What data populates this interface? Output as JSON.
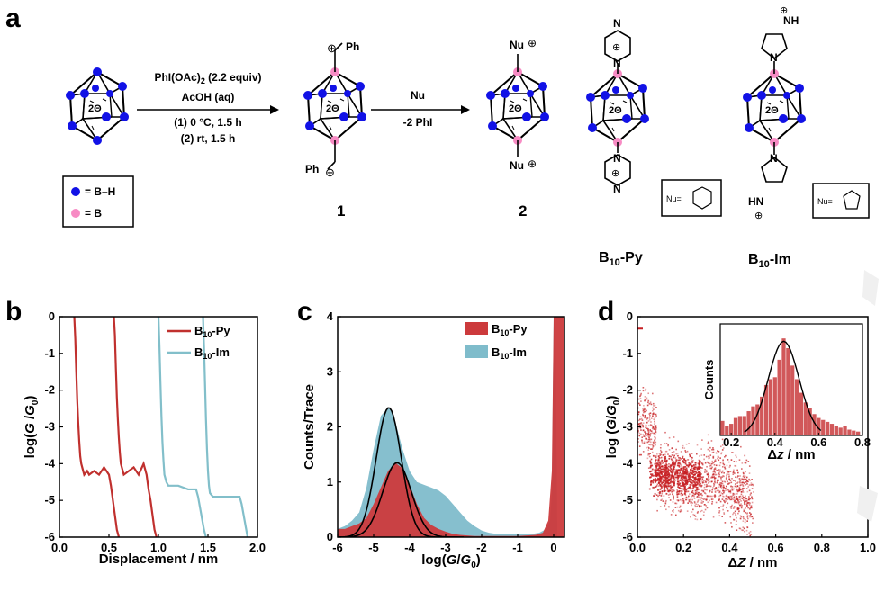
{
  "panel_a": {
    "letter": "a",
    "reagents_line1": "PhI(OAc)",
    "reagents_line1_sub": "2",
    "reagents_line1_tail": " (2.2 equiv)",
    "reagents_line2": "AcOH (aq)",
    "reagents_line3": "(1) 0 °C, 1.5 h",
    "reagents_line4": "(2) rt, 1.5 h",
    "step2_top": "Nu",
    "step2_bottom": "-2 PhI",
    "legend_bh": "= B–H",
    "legend_b": "= B",
    "compound1": "1",
    "compound2": "2",
    "cage_charge": "2Θ",
    "ph_top": "Ph",
    "ph_bottom": "Ph",
    "plus": "⊕",
    "nu_top": "Nu",
    "nu_bottom": "Nu",
    "nu_box_label": "Nu=",
    "nh_label": "NH",
    "hn_label": "HN",
    "n_label": "N",
    "pyrazine_n": "N",
    "b10py_main": "B",
    "b10py_sub": "10",
    "b10py_tail": "-Py",
    "b10im_main": "B",
    "b10im_sub": "10",
    "b10im_tail": "-Im",
    "colors": {
      "bh": "#1212e6",
      "b": "#f78bc4"
    }
  },
  "chart_data": [
    {
      "panel": "b",
      "type": "line",
      "xlabel": "Displacement / nm",
      "ylabel_pre": "log(",
      "ylabel_g": "G",
      "ylabel_mid": " /",
      "ylabel_g0": "G",
      "ylabel_sub": "0",
      "ylabel_post": ")",
      "xlim": [
        0.0,
        2.0
      ],
      "ylim": [
        -6,
        0
      ],
      "xticks": [
        "0.0",
        "0.5",
        "1.0",
        "1.5",
        "2.0"
      ],
      "yticks": [
        "0",
        "-1",
        "-2",
        "-3",
        "-4",
        "-5",
        "-6"
      ],
      "legend": [
        {
          "main": "B",
          "sub": "10",
          "tail": "-Py",
          "color": "#c0302e"
        },
        {
          "main": "B",
          "sub": "10",
          "tail": "-Im",
          "color": "#82bfca"
        }
      ],
      "series": [
        {
          "color": "#c0302e",
          "x": [
            0.15,
            0.16,
            0.17,
            0.18,
            0.19,
            0.2,
            0.21,
            0.22,
            0.23,
            0.25,
            0.28,
            0.3,
            0.35,
            0.4,
            0.45,
            0.5,
            0.52,
            0.54,
            0.56,
            0.58,
            0.6
          ],
          "y": [
            0,
            -0.6,
            -1.5,
            -2.3,
            -2.9,
            -3.4,
            -3.8,
            -4.0,
            -4.1,
            -4.3,
            -4.2,
            -4.3,
            -4.2,
            -4.3,
            -4.1,
            -4.3,
            -4.6,
            -5.0,
            -5.4,
            -5.8,
            -6.0
          ]
        },
        {
          "color": "#c0302e",
          "x": [
            0.55,
            0.56,
            0.57,
            0.58,
            0.59,
            0.6,
            0.61,
            0.62,
            0.65,
            0.7,
            0.75,
            0.8,
            0.85,
            0.88,
            0.9,
            0.92,
            0.94,
            0.96,
            0.98
          ],
          "y": [
            0,
            -0.5,
            -1.4,
            -2.2,
            -2.8,
            -3.3,
            -3.7,
            -4.0,
            -4.3,
            -4.2,
            -4.1,
            -4.3,
            -4.0,
            -4.3,
            -4.7,
            -5.0,
            -5.4,
            -5.8,
            -6.0
          ]
        },
        {
          "color": "#82bfca",
          "x": [
            1.0,
            1.01,
            1.02,
            1.03,
            1.04,
            1.05,
            1.06,
            1.08,
            1.1,
            1.2,
            1.3,
            1.38,
            1.4,
            1.42,
            1.44,
            1.46,
            1.48
          ],
          "y": [
            0,
            -0.8,
            -1.8,
            -2.7,
            -3.4,
            -3.9,
            -4.3,
            -4.5,
            -4.6,
            -4.6,
            -4.7,
            -4.7,
            -4.9,
            -5.2,
            -5.5,
            -5.8,
            -6.0
          ]
        },
        {
          "color": "#82bfca",
          "x": [
            1.45,
            1.46,
            1.47,
            1.48,
            1.49,
            1.5,
            1.51,
            1.52,
            1.55,
            1.65,
            1.75,
            1.82,
            1.84,
            1.86,
            1.88,
            1.9
          ],
          "y": [
            0,
            -0.8,
            -1.8,
            -2.8,
            -3.6,
            -4.2,
            -4.6,
            -4.8,
            -4.9,
            -4.9,
            -4.9,
            -4.9,
            -5.1,
            -5.4,
            -5.7,
            -6.0
          ]
        }
      ]
    },
    {
      "panel": "c",
      "type": "area",
      "xlabel_pre": "log(",
      "xlabel_g": "G",
      "xlabel_mid": "/",
      "xlabel_g0": "G",
      "xlabel_sub": "0",
      "xlabel_post": ")",
      "ylabel": "Counts/Trace",
      "xlim": [
        -6,
        0.3
      ],
      "ylim": [
        0,
        4
      ],
      "xticks": [
        "-6",
        "-5",
        "-4",
        "-3",
        "-2",
        "-1",
        "0"
      ],
      "yticks": [
        "0",
        "1",
        "2",
        "3",
        "4"
      ],
      "legend": [
        {
          "main": "B",
          "sub": "10",
          "tail": "-Py",
          "color": "#cc3a3c"
        },
        {
          "main": "B",
          "sub": "10",
          "tail": "-Im",
          "color": "#7fbccb"
        }
      ],
      "series": [
        {
          "name": "B10-Im",
          "color": "#7fbccb",
          "x": [
            -6,
            -5.8,
            -5.6,
            -5.4,
            -5.2,
            -5.0,
            -4.8,
            -4.6,
            -4.5,
            -4.4,
            -4.2,
            -4.0,
            -3.8,
            -3.6,
            -3.4,
            -3.2,
            -3.0,
            -2.8,
            -2.6,
            -2.4,
            -2.2,
            -2.0,
            -1.8,
            -1.6,
            -1.4,
            -1.2,
            -1.0,
            -0.8,
            -0.6,
            -0.4,
            -0.2,
            -0.1,
            -0.05,
            0,
            0.05,
            0.1
          ],
          "y": [
            0.15,
            0.2,
            0.3,
            0.45,
            0.9,
            1.6,
            2.2,
            2.35,
            2.3,
            2.1,
            1.6,
            1.2,
            1.0,
            0.95,
            0.9,
            0.85,
            0.75,
            0.6,
            0.45,
            0.3,
            0.2,
            0.12,
            0.08,
            0.06,
            0.05,
            0.05,
            0.05,
            0.05,
            0.06,
            0.08,
            0.15,
            0.3,
            0.8,
            4.0,
            4.0,
            0.2
          ]
        },
        {
          "name": "B10-Py",
          "color": "#cc3a3c",
          "x": [
            -6,
            -5.8,
            -5.6,
            -5.4,
            -5.2,
            -5.0,
            -4.8,
            -4.6,
            -4.4,
            -4.2,
            -4.0,
            -3.8,
            -3.6,
            -3.4,
            -3.2,
            -3.0,
            -2.8,
            -2.6,
            -2.4,
            -2.2,
            -2.0,
            -1.8,
            -1.5,
            -1.0,
            -0.5,
            -0.3,
            -0.15,
            -0.05,
            0,
            0.1,
            0.3
          ],
          "y": [
            0.15,
            0.15,
            0.2,
            0.25,
            0.35,
            0.6,
            0.9,
            1.2,
            1.35,
            1.25,
            0.95,
            0.6,
            0.35,
            0.22,
            0.15,
            0.1,
            0.06,
            0.04,
            0.03,
            0.02,
            0.02,
            0.02,
            0.02,
            0.02,
            0.04,
            0.08,
            0.3,
            1.2,
            4.0,
            4.0,
            4.0
          ]
        }
      ],
      "fits": [
        {
          "color": "#000000",
          "center": -4.58,
          "amp": 2.35,
          "sigma": 0.35
        },
        {
          "color": "#000000",
          "center": -4.35,
          "amp": 1.35,
          "sigma": 0.4
        }
      ]
    },
    {
      "panel": "d",
      "type": "heatmap",
      "xlabel_main": "Δ",
      "xlabel_z": "Z",
      "xlabel_post": " / nm",
      "ylabel_pre": "log (",
      "ylabel_g": "G",
      "ylabel_mid": "/",
      "ylabel_g0": "G",
      "ylabel_sub": "0",
      "ylabel_post": ")",
      "xlim": [
        0.0,
        1.0
      ],
      "ylim": [
        -6,
        0
      ],
      "xticks": [
        "0.0",
        "0.2",
        "0.4",
        "0.6",
        "0.8",
        "1.0"
      ],
      "yticks": [
        "0",
        "-1",
        "-2",
        "-3",
        "-4",
        "-5",
        "-6"
      ],
      "color": "#c71f22",
      "inset": {
        "type": "bar",
        "xlabel_main": "Δ",
        "xlabel_z": "z",
        "xlabel_post": " / nm",
        "ylabel": "Counts",
        "xlim": [
          0.15,
          0.8
        ],
        "xticks": [
          "0.2",
          "0.4",
          "0.6",
          "0.8"
        ],
        "bar_color": "#d1585a",
        "x": [
          0.16,
          0.18,
          0.2,
          0.22,
          0.24,
          0.26,
          0.28,
          0.3,
          0.32,
          0.34,
          0.36,
          0.38,
          0.4,
          0.42,
          0.44,
          0.46,
          0.48,
          0.5,
          0.52,
          0.54,
          0.56,
          0.58,
          0.6,
          0.62,
          0.64,
          0.66,
          0.68,
          0.7,
          0.72,
          0.74,
          0.76,
          0.78
        ],
        "values": [
          0.15,
          0.1,
          0.12,
          0.18,
          0.2,
          0.2,
          0.25,
          0.3,
          0.32,
          0.4,
          0.52,
          0.58,
          0.6,
          0.78,
          1.0,
          0.9,
          0.72,
          0.58,
          0.44,
          0.34,
          0.28,
          0.22,
          0.18,
          0.16,
          0.14,
          0.12,
          0.1,
          0.08,
          0.1,
          0.06,
          0.05,
          0.04
        ],
        "fit": {
          "center": 0.44,
          "amp": 0.97,
          "sigma": 0.07
        }
      }
    }
  ]
}
